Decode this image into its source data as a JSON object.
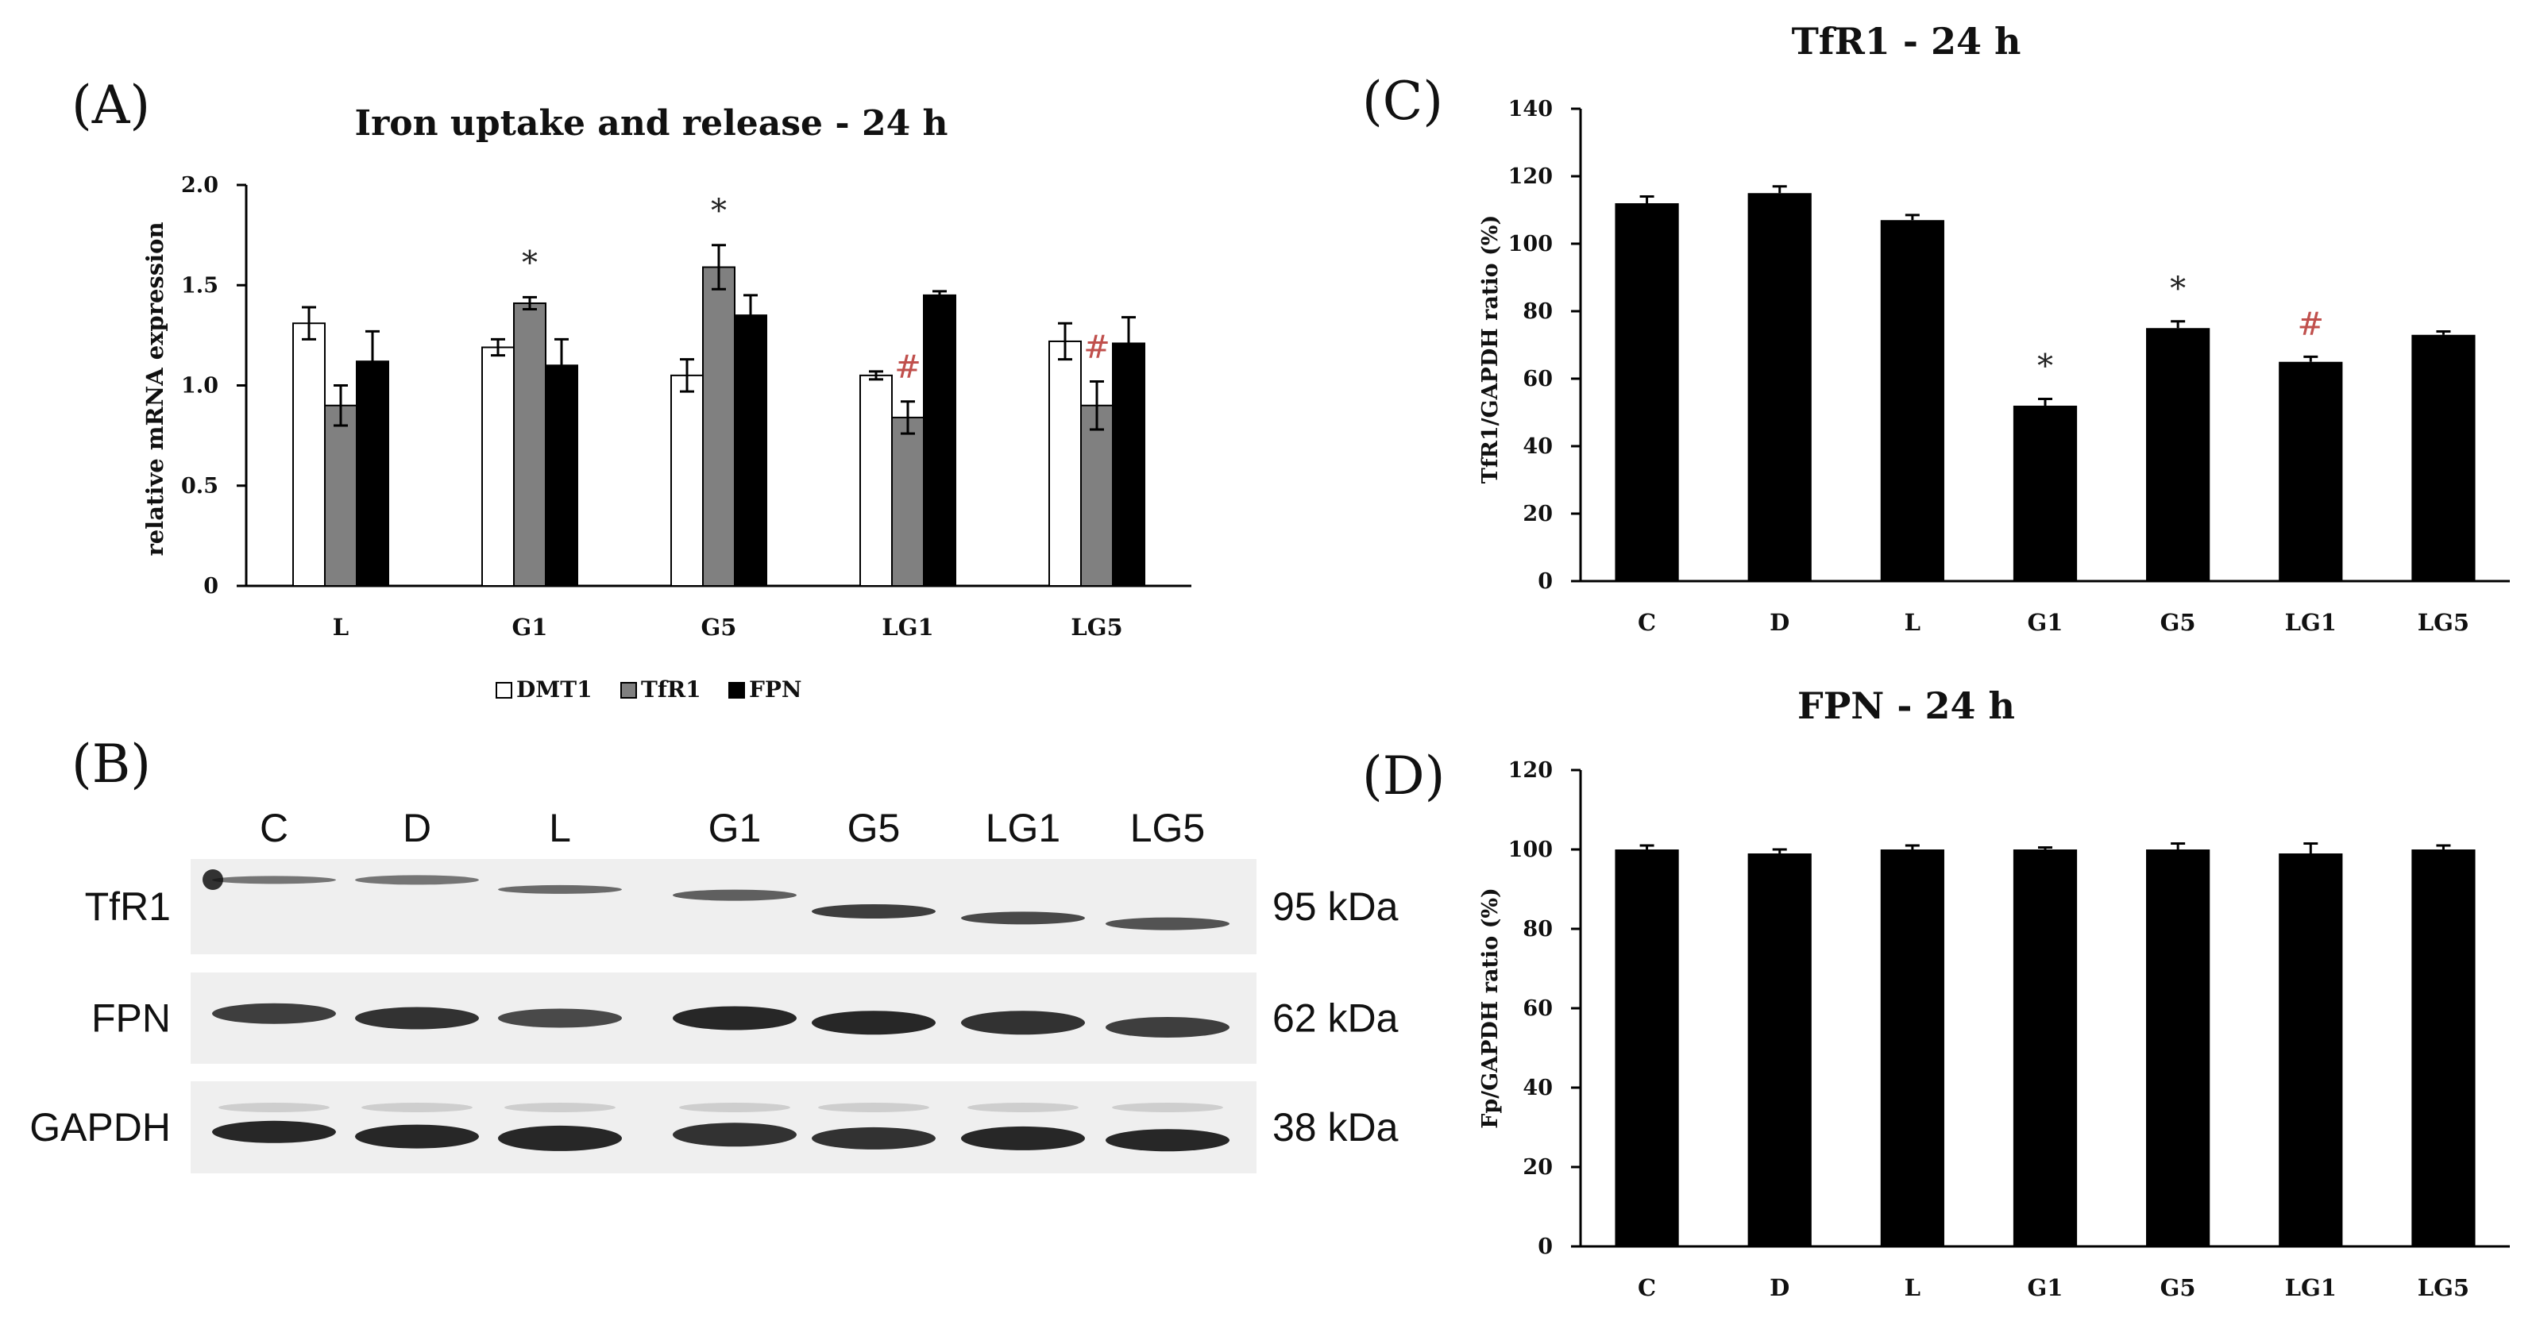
{
  "panels": {
    "A": {
      "label": "(A)",
      "chart_data": {
        "type": "bar",
        "title": "Iron uptake and release - 24 h",
        "ylabel": "relative mRNA expression",
        "xlabel": "",
        "ylim": [
          0,
          2.0
        ],
        "yticks": [
          "0",
          "0.5",
          "1.0",
          "1.5",
          "2.0"
        ],
        "categories": [
          "L",
          "G1",
          "G5",
          "LG1",
          "LG5"
        ],
        "series": [
          {
            "name": "DMT1",
            "color": "#ffffff",
            "values": [
              1.31,
              1.19,
              1.05,
              1.05,
              1.22
            ],
            "errors": [
              0.08,
              0.04,
              0.08,
              0.02,
              0.09
            ]
          },
          {
            "name": "TfR1",
            "color": "#808080",
            "values": [
              0.9,
              1.41,
              1.59,
              0.84,
              0.9
            ],
            "errors": [
              0.1,
              0.03,
              0.11,
              0.08,
              0.12
            ]
          },
          {
            "name": "FPN",
            "color": "#000000",
            "values": [
              1.12,
              1.1,
              1.35,
              1.45,
              1.21
            ],
            "errors": [
              0.15,
              0.13,
              0.1,
              0.02,
              0.13
            ]
          }
        ],
        "annotations": [
          {
            "category": "G1",
            "series": "TfR1",
            "text": "*",
            "color": "#222222"
          },
          {
            "category": "G5",
            "series": "TfR1",
            "text": "*",
            "color": "#222222"
          },
          {
            "category": "LG1",
            "series": "TfR1",
            "text": "#",
            "color": "#c0504d"
          },
          {
            "category": "LG5",
            "series": "TfR1",
            "text": "#",
            "color": "#c0504d"
          }
        ]
      }
    },
    "B": {
      "label": "(B)",
      "lanes": [
        "C",
        "D",
        "L",
        "G1",
        "G5",
        "LG1",
        "LG5"
      ],
      "rows": [
        {
          "name": "TfR1",
          "size": "95 kDa"
        },
        {
          "name": "FPN",
          "size": "62 kDa"
        },
        {
          "name": "GAPDH",
          "size": "38 kDa"
        }
      ]
    },
    "C": {
      "label": "(C)",
      "chart_data": {
        "type": "bar",
        "title": "TfR1 - 24 h",
        "ylabel": "TfR1/GAPDH ratio (%)",
        "xlabel": "",
        "ylim": [
          0,
          140
        ],
        "yticks": [
          "0",
          "20",
          "40",
          "60",
          "80",
          "100",
          "120",
          "140"
        ],
        "categories": [
          "C",
          "D",
          "L",
          "G1",
          "G5",
          "LG1",
          "LG5"
        ],
        "values": [
          112,
          115,
          107,
          52,
          75,
          65,
          73
        ],
        "errors": [
          2,
          2,
          1.5,
          2,
          2,
          1.5,
          1
        ],
        "annotations": [
          {
            "category": "G1",
            "text": "*",
            "color": "#222222"
          },
          {
            "category": "G5",
            "text": "*",
            "color": "#222222"
          },
          {
            "category": "LG1",
            "text": "#",
            "color": "#c0504d"
          }
        ]
      }
    },
    "D": {
      "label": "(D)",
      "chart_data": {
        "type": "bar",
        "title": "FPN - 24 h",
        "ylabel": "Fp/GAPDH ratio (%)",
        "xlabel": "",
        "ylim": [
          0,
          120
        ],
        "yticks": [
          "0",
          "20",
          "40",
          "60",
          "80",
          "100",
          "120"
        ],
        "categories": [
          "C",
          "D",
          "L",
          "G1",
          "G5",
          "LG1",
          "LG5"
        ],
        "values": [
          100,
          99,
          100,
          100,
          100,
          99,
          100
        ],
        "errors": [
          1,
          1,
          1,
          0.5,
          1.5,
          2.5,
          1
        ],
        "annotations": []
      }
    }
  }
}
